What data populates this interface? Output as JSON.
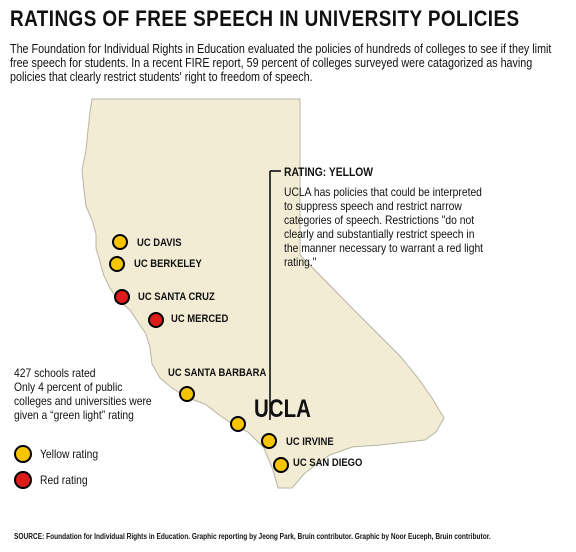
{
  "title": "RATINGS OF FREE SPEECH IN UNIVERSITY POLICIES",
  "intro": "The Foundation for Individual Rights in Education evaluated the policies of hundreds of colleges to see if they limit free speech for students. In a recent FIRE report, 59 percent of colleges surveyed were catagorized as having policies that clearly restrict students' right to freedom of speech.",
  "callout": {
    "title": "RATING: YELLOW",
    "body": "UCLA has policies that could be interpreted to suppress speech and restrict narrow categories of speech. Restrictions \"do not clearly and substantially restrict speech in the manner necessary to warrant a red light rating.\""
  },
  "campuses": [
    {
      "name": "UC DAVIS",
      "rating": "yellow"
    },
    {
      "name": "UC BERKELEY",
      "rating": "yellow"
    },
    {
      "name": "UC SANTA CRUZ",
      "rating": "red"
    },
    {
      "name": "UC MERCED",
      "rating": "red"
    },
    {
      "name": "UC SANTA BARBARA",
      "rating": "yellow"
    },
    {
      "name": "UCLA",
      "rating": "yellow"
    },
    {
      "name": "UC IRVINE",
      "rating": "yellow"
    },
    {
      "name": "UC SAN DIEGO",
      "rating": "yellow"
    }
  ],
  "stats": {
    "schools": "427 schools rated",
    "green": "Only 4 percent of public colleges and universities were given a “green light” rating"
  },
  "legend": {
    "yellow": "Yellow rating",
    "red": "Red rating"
  },
  "colors": {
    "yellow": "#f6c500",
    "red": "#dd1c1a",
    "land": "#f2ecd5",
    "land_edge": "#b9b4a3"
  },
  "source": "SOURCE: Foundation for Individual Rights in Education. Graphic reporting by Jeong Park, Bruin contributor. Graphic by Noor Euceph, Bruin contributor."
}
